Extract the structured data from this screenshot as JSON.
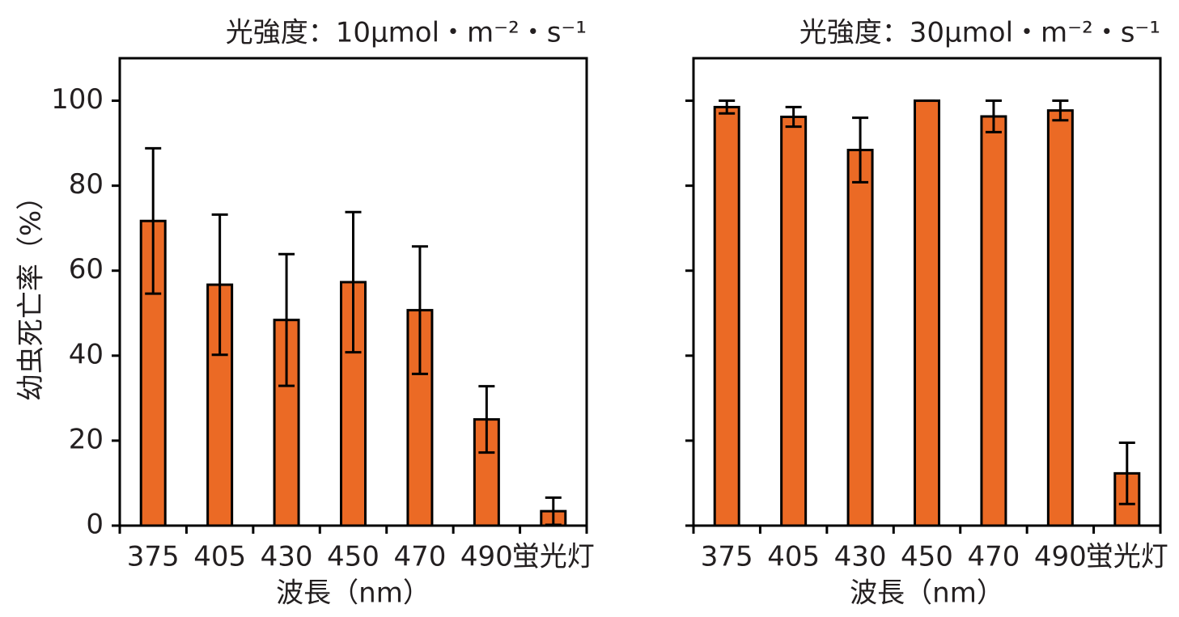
{
  "chart_data": [
    {
      "type": "bar",
      "title": "光強度：10μmol・m⁻²・s⁻¹",
      "xlabel": "波長（nm）",
      "ylabel": "幼虫死亡率（%）",
      "categories": [
        "375",
        "405",
        "430",
        "450",
        "470",
        "490",
        "蛍光灯"
      ],
      "series": [
        {
          "color": "#eb6a25",
          "values": [
            71.7,
            56.7,
            48.4,
            57.3,
            50.7,
            25.0,
            3.4
          ],
          "errors": [
            17.1,
            16.5,
            15.5,
            16.5,
            15.0,
            7.8,
            3.2
          ]
        }
      ],
      "ylim": [
        0,
        110
      ],
      "yticks": [
        0,
        20,
        40,
        60,
        80,
        100
      ],
      "ytick_labels": true
    },
    {
      "type": "bar",
      "title": "光強度：30μmol・m⁻²・s⁻¹",
      "xlabel": "波長（nm）",
      "categories": [
        "375",
        "405",
        "430",
        "450",
        "470",
        "490",
        "蛍光灯"
      ],
      "series": [
        {
          "color": "#eb6a25",
          "values": [
            98.5,
            96.2,
            88.4,
            100,
            96.3,
            97.7,
            12.3
          ],
          "errors": [
            1.5,
            2.3,
            7.6,
            0,
            3.7,
            2.3,
            7.2
          ]
        }
      ],
      "ylim": [
        0,
        110
      ],
      "yticks": [
        0,
        20,
        40,
        60,
        80,
        100
      ],
      "ytick_labels": false
    }
  ]
}
